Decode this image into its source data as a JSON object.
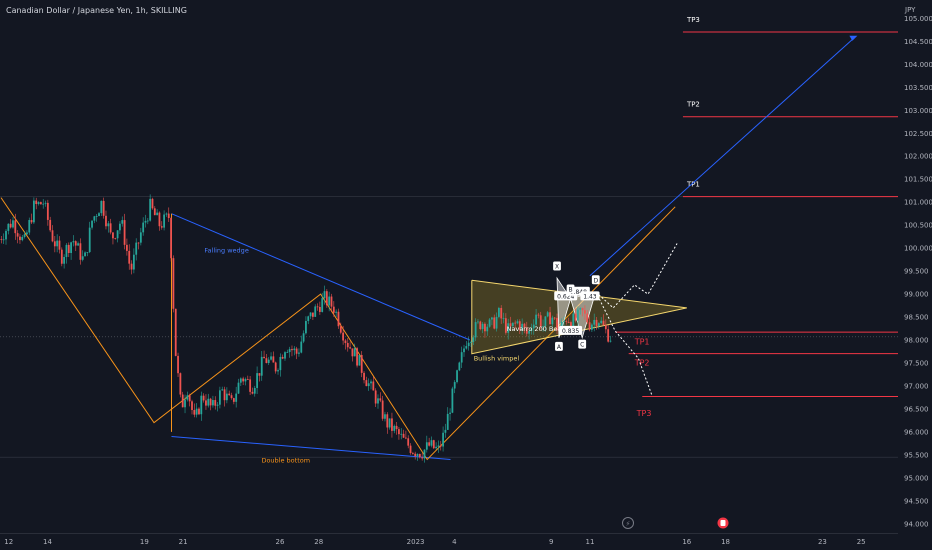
{
  "header": {
    "title": "Canadian Dollar / Japanese Yen, 1h, SKILLING"
  },
  "chart_data": {
    "type": "candlestick",
    "currency": "JPY",
    "y_ticks": [
      105.0,
      104.5,
      104.0,
      103.5,
      103.0,
      102.5,
      102.0,
      101.5,
      101.0,
      100.5,
      100.0,
      99.5,
      99.0,
      98.5,
      98.0,
      97.5,
      97.0,
      96.5,
      96.0,
      95.5,
      95.0,
      94.5,
      94.0
    ],
    "y_tick_labels": [
      "105.000",
      "104.500",
      "104.000",
      "103.500",
      "103.000",
      "102.500",
      "102.000",
      "101.500",
      "101.000",
      "100.500",
      "100.000",
      "99.500",
      "99.000",
      "98.500",
      "98.000",
      "97.500",
      "97.000",
      "96.500",
      "96.000",
      "95.500",
      "95.000",
      "94.500",
      "94.000"
    ],
    "ylim": [
      93.8,
      105.4
    ],
    "x_ticks": [
      {
        "label": "12",
        "x": 12
      },
      {
        "label": "14",
        "x": 14
      },
      {
        "label": "19",
        "x": 19
      },
      {
        "label": "21",
        "x": 21
      },
      {
        "label": "26",
        "x": 26
      },
      {
        "label": "28",
        "x": 28
      },
      {
        "label": "2023",
        "x": 33
      },
      {
        "label": "4",
        "x": 35
      },
      {
        "label": "9",
        "x": 40
      },
      {
        "label": "11",
        "x": 42
      },
      {
        "label": "16",
        "x": 47
      },
      {
        "label": "18",
        "x": 49
      },
      {
        "label": "23",
        "x": 54
      },
      {
        "label": "25",
        "x": 56
      }
    ],
    "xlim": [
      11.55,
      57.9
    ],
    "price_path": [
      [
        11.5,
        100.2
      ],
      [
        12.2,
        100.6
      ],
      [
        12.8,
        100.1
      ],
      [
        13.3,
        100.9
      ],
      [
        13.8,
        101.0
      ],
      [
        14.2,
        100.3
      ],
      [
        14.7,
        99.8
      ],
      [
        15.3,
        100.2
      ],
      [
        15.9,
        99.7
      ],
      [
        16.3,
        100.6
      ],
      [
        16.8,
        101.0
      ],
      [
        17.3,
        100.2
      ],
      [
        17.8,
        100.6
      ],
      [
        18.3,
        99.5
      ],
      [
        18.8,
        100.3
      ],
      [
        19.3,
        100.9
      ],
      [
        19.8,
        100.5
      ],
      [
        20.3,
        100.7
      ],
      [
        20.6,
        97.8
      ],
      [
        20.9,
        96.5
      ],
      [
        21.2,
        97.0
      ],
      [
        21.6,
        96.2
      ],
      [
        22.0,
        96.8
      ],
      [
        22.5,
        96.5
      ],
      [
        23.0,
        96.9
      ],
      [
        23.5,
        96.6
      ],
      [
        24.0,
        97.2
      ],
      [
        24.6,
        97.0
      ],
      [
        25.2,
        97.6
      ],
      [
        25.8,
        97.4
      ],
      [
        26.3,
        97.9
      ],
      [
        26.9,
        97.7
      ],
      [
        27.4,
        98.4
      ],
      [
        27.9,
        98.7
      ],
      [
        28.3,
        98.9
      ],
      [
        28.8,
        98.7
      ],
      [
        29.4,
        98.0
      ],
      [
        30.0,
        97.6
      ],
      [
        30.5,
        97.1
      ],
      [
        31.0,
        96.7
      ],
      [
        31.5,
        96.2
      ],
      [
        32.0,
        96.0
      ],
      [
        32.4,
        95.8
      ],
      [
        32.9,
        95.6
      ],
      [
        33.3,
        95.55
      ],
      [
        33.7,
        95.7
      ],
      [
        34.2,
        95.6
      ],
      [
        34.5,
        96.0
      ],
      [
        34.8,
        96.6
      ],
      [
        35.2,
        97.3
      ],
      [
        35.6,
        98.0
      ],
      [
        36.0,
        98.2
      ],
      [
        36.4,
        98.4
      ],
      [
        36.9,
        98.3
      ],
      [
        37.3,
        98.55
      ],
      [
        37.8,
        98.2
      ],
      [
        38.3,
        98.4
      ],
      [
        38.8,
        98.1
      ],
      [
        39.2,
        98.6
      ],
      [
        39.6,
        98.3
      ],
      [
        40.0,
        98.55
      ],
      [
        40.4,
        98.2
      ],
      [
        40.8,
        98.5
      ],
      [
        41.2,
        98.4
      ],
      [
        41.6,
        98.6
      ],
      [
        42.0,
        98.35
      ],
      [
        42.4,
        98.5
      ],
      [
        42.8,
        98.2
      ],
      [
        43.1,
        98.05
      ]
    ],
    "current_price": 98.069,
    "price_badges": [
      {
        "value": "104.704",
        "level": 104.704
      },
      {
        "value": "102.860",
        "level": 102.86
      },
      {
        "value": "101.122",
        "level": 101.122
      },
      {
        "value": "98.173",
        "level": 98.173
      },
      {
        "value": "98.069",
        "level": 98.069
      },
      {
        "value": "97.703",
        "level": 97.703
      },
      {
        "value": "96.771",
        "level": 96.771
      }
    ],
    "targets": [
      {
        "label": "TP3",
        "level": 104.704,
        "from_x": 46.8
      },
      {
        "label": "TP2",
        "level": 102.86,
        "from_x": 46.8
      },
      {
        "label": "TP1",
        "level": 101.122,
        "from_x": 46.8
      }
    ],
    "bear_targets": [
      {
        "label": "TP1",
        "level": 98.173
      },
      {
        "label": "TP2",
        "level": 97.703
      },
      {
        "label": "TP3",
        "level": 96.771
      }
    ],
    "annotations": {
      "falling_wedge": "Falling wedge",
      "double_bottom": "Double bottom",
      "bullish_pennant": "Bullish vimpel",
      "navarro": "Navarro 200 Bearish",
      "ratio_1": "0.624",
      "ratio_2": "0.848",
      "ratio_3": "1.43",
      "ratio_4": "0.835",
      "point_x": "X",
      "point_a": "A",
      "point_b": "B",
      "point_c": "C",
      "point_d": "D"
    }
  },
  "colors": {
    "background": "#131722",
    "bull": "#26a69a",
    "bear": "#ef5350",
    "blue": "#2962ff",
    "orange": "#f7931a",
    "target": "#f23645",
    "axis_text": "#b2b5be"
  }
}
